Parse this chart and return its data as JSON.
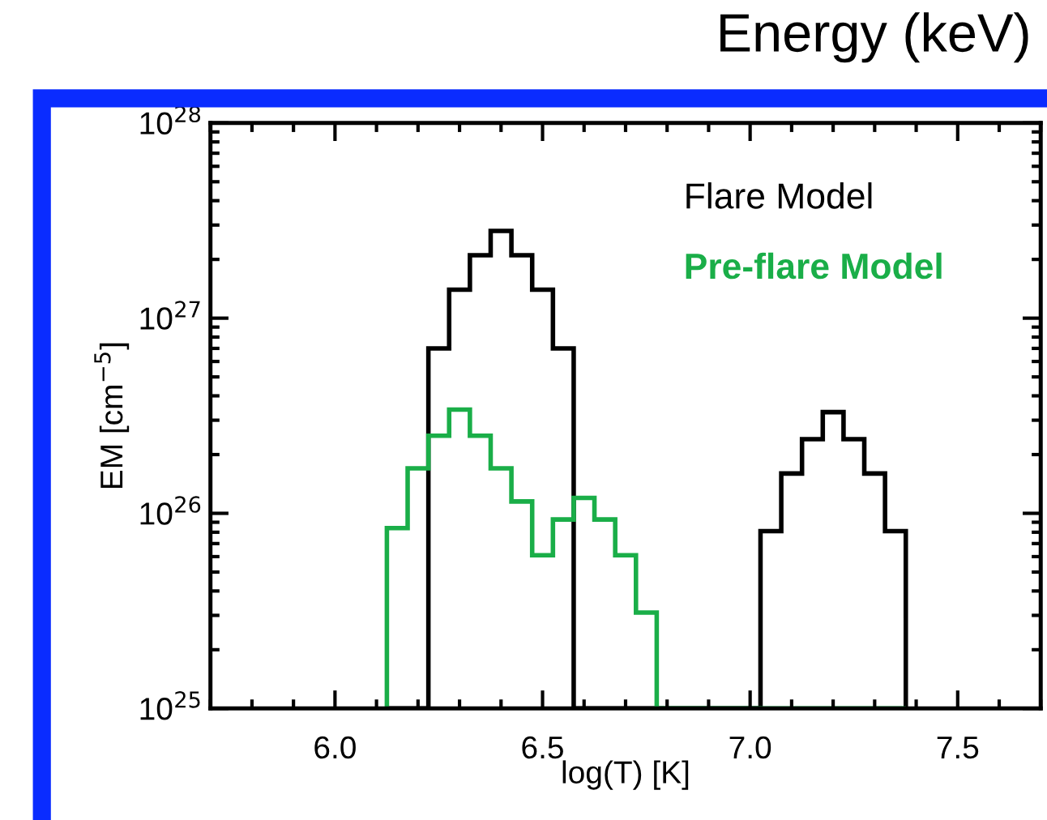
{
  "chart_data": {
    "type": "histogram",
    "title": "Energy (keV)",
    "xlabel": "log(T) [K]",
    "ylabel": "EM [cm$^{−5}$]",
    "xlim": [
      5.7,
      7.7
    ],
    "ylim": [
      1e+25,
      1e+28
    ],
    "log": "y",
    "xticks": [
      {
        "value": 6,
        "label": "6.0"
      },
      6.5,
      {
        "value": 7,
        "label": "7.0"
      },
      7.5
    ],
    "yticks": [
      {
        "value": 1e+25,
        "label": "10$^{25}$"
      },
      {
        "value": 1e+26,
        "label": "10$^{26}$"
      },
      {
        "value": 1e+27,
        "label": "10$^{27}$"
      },
      {
        "value": 1e+28,
        "label": "10$^{28}$"
      }
    ],
    "legend": "top right",
    "grid": false,
    "bins": [
      6.125,
      6.175,
      6.225,
      6.275,
      6.325,
      6.375,
      6.425,
      6.475,
      6.525,
      6.575,
      6.625,
      6.675,
      6.725,
      6.775,
      6.825,
      6.875,
      6.925,
      6.975,
      7.025,
      7.075,
      7.125,
      7.175,
      7.225,
      7.275,
      7.325,
      7.375
    ],
    "series": [
      {
        "name": "Flare Model",
        "color": "#000000",
        "values": [
          1e+25,
          1e+25,
          7e+26,
          1.4e+27,
          2.1e+27,
          2.8e+27,
          2.1e+27,
          1.4e+27,
          7e+26,
          1e+25,
          1e+25,
          1e+25,
          1e+25,
          1e+25,
          1e+25,
          1e+25,
          1e+25,
          1e+25,
          8.1e+25,
          1.6e+26,
          2.4e+26,
          3.3e+26,
          2.4e+26,
          1.6e+26,
          8.1e+25
        ]
      },
      {
        "name": "Pre-flare Model",
        "color": "#1aae48",
        "values": [
          8.4e+25,
          1.7e+26,
          2.5e+26,
          3.4e+26,
          2.5e+26,
          1.7e+26,
          1.15e+26,
          6.1e+25,
          9.3e+25,
          1.2e+26,
          9.3e+25,
          6.1e+25,
          3.1e+25,
          1e+25,
          1e+25,
          1e+25,
          1e+25,
          1e+25,
          1e+25,
          1e+25,
          1e+25,
          1e+25,
          1e+25,
          1e+25,
          1e+25
        ]
      }
    ]
  }
}
